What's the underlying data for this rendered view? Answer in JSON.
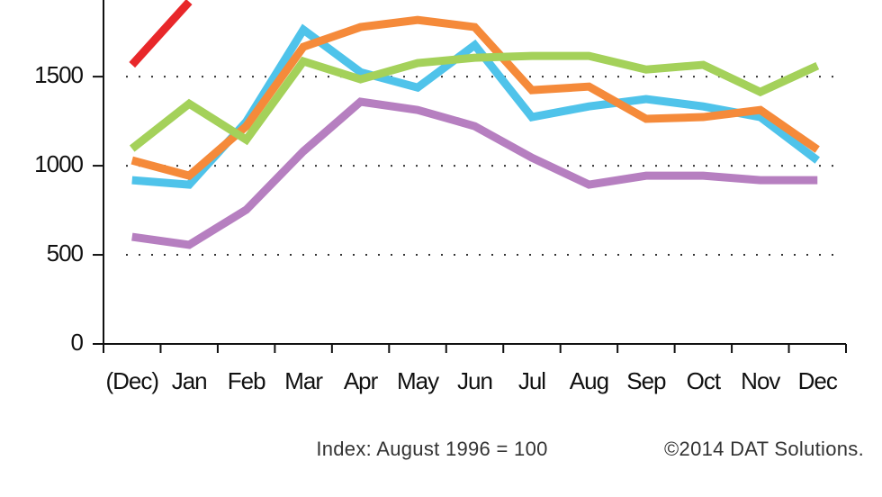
{
  "chart_data": {
    "type": "line",
    "categories": [
      "(Dec)",
      "Jan",
      "Feb",
      "Mar",
      "Apr",
      "May",
      "Jun",
      "Jul",
      "Aug",
      "Sep",
      "Oct",
      "Nov",
      "Dec"
    ],
    "series": [
      {
        "color": "#e8272a",
        "values": [
          1566,
          1920,
          null,
          null,
          null,
          null,
          null,
          null,
          null,
          null,
          null,
          null,
          null
        ]
      },
      {
        "color": "#4fc3ea",
        "values": [
          919,
          894,
          1247,
          1763,
          1525,
          1439,
          1677,
          1273,
          1333,
          1374,
          1333,
          1273,
          1030
        ]
      },
      {
        "color": "#f58a3a",
        "values": [
          1030,
          944,
          1222,
          1667,
          1778,
          1818,
          1778,
          1424,
          1444,
          1263,
          1273,
          1313,
          1091
        ]
      },
      {
        "color": "#a4d15a",
        "values": [
          1096,
          1348,
          1146,
          1586,
          1485,
          1576,
          1606,
          1616,
          1616,
          1540,
          1566,
          1414,
          1561
        ]
      },
      {
        "color": "#b67fc0",
        "values": [
          601,
          556,
          753,
          1081,
          1359,
          1313,
          1222,
          1045,
          894,
          944,
          944,
          919,
          919
        ]
      }
    ],
    "ylim": [
      0,
      1930
    ],
    "yticks": [
      0,
      500,
      1000,
      1500
    ],
    "grid": true,
    "annotations": [
      "Index: August 1996 = 100",
      "©2014 DAT Solutions."
    ]
  }
}
